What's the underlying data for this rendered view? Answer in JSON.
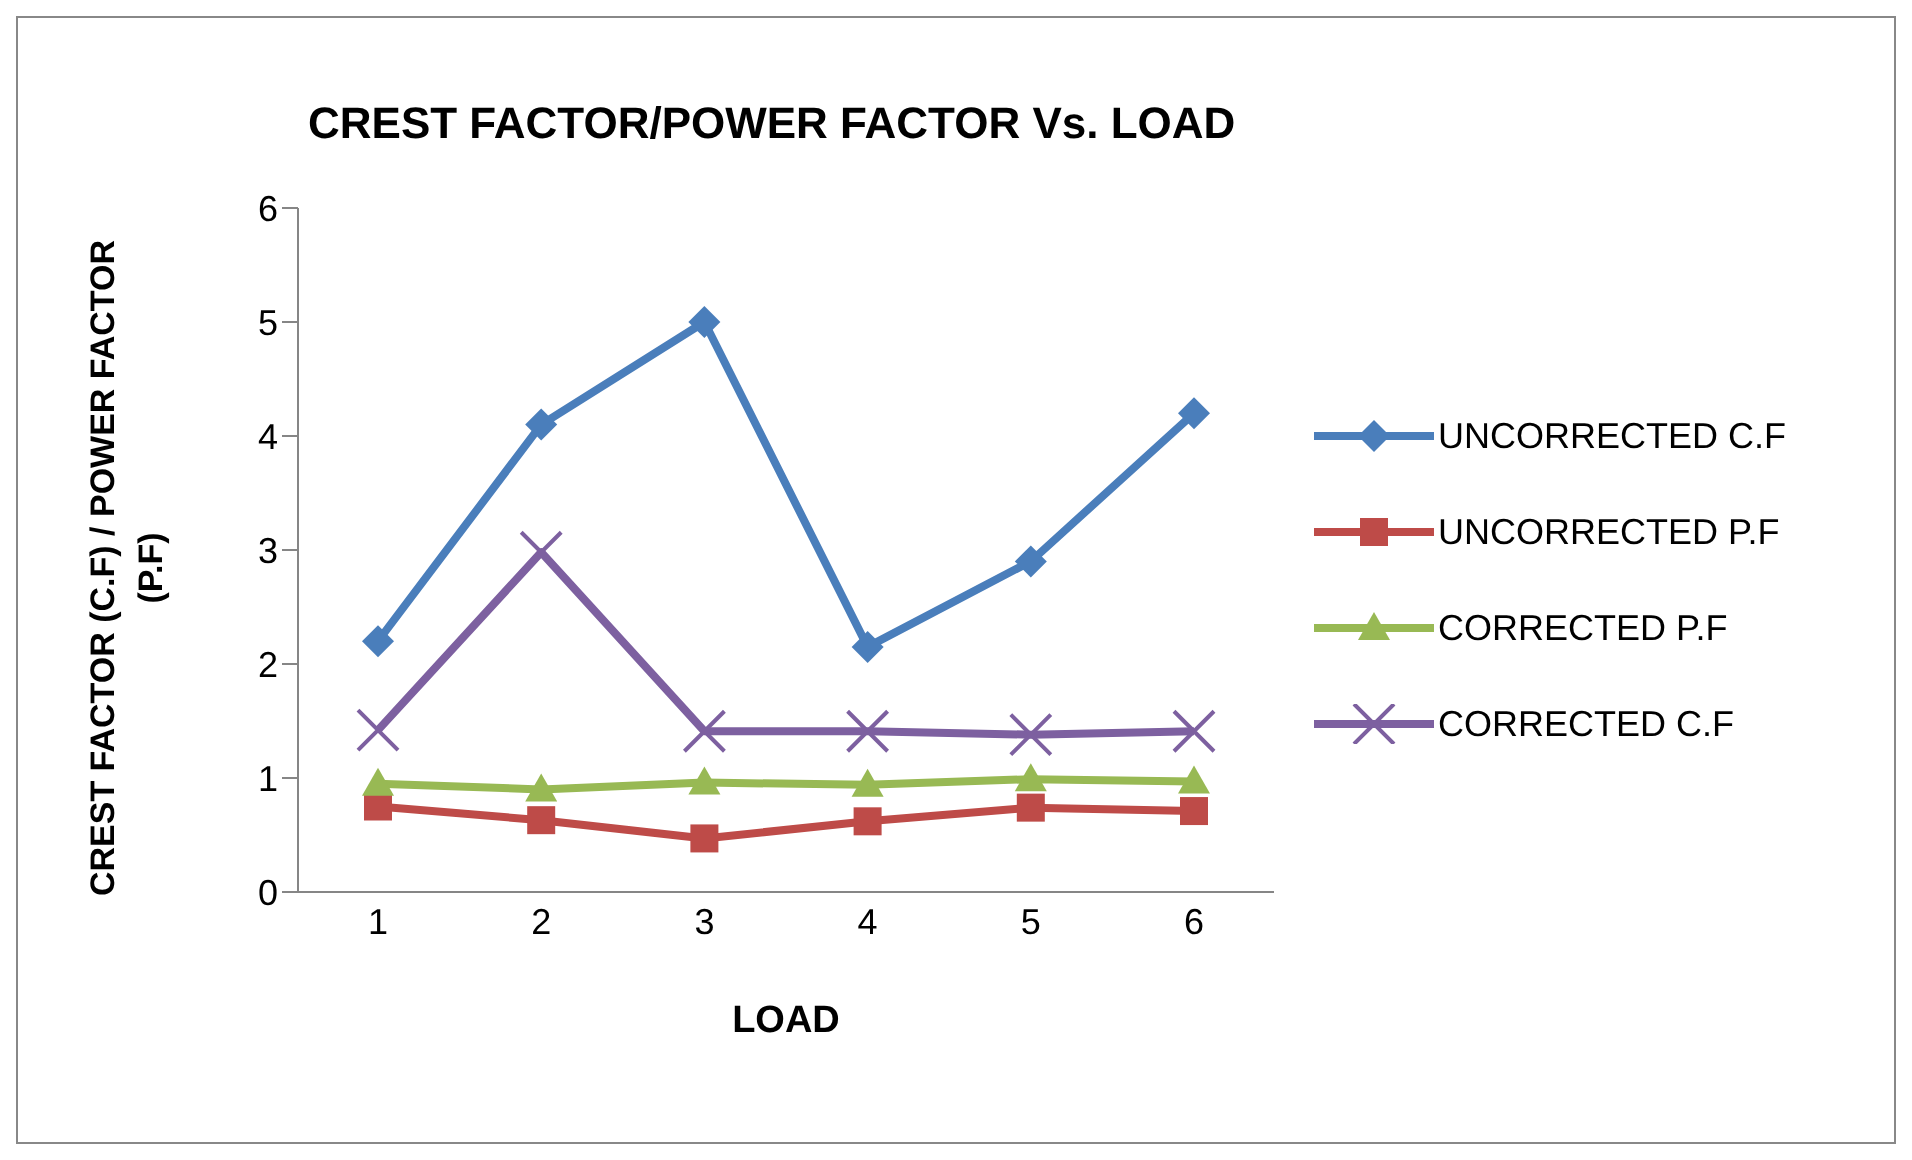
{
  "chart_data": {
    "type": "line",
    "title": "CREST FACTOR/POWER FACTOR Vs. LOAD",
    "xlabel": "LOAD",
    "ylabel": "CREST FACTOR (C.F) / POWER FACTOR (P.F)",
    "categories": [
      "1",
      "2",
      "3",
      "4",
      "5",
      "6"
    ],
    "series": [
      {
        "name": "UNCORRECTED C.F",
        "color": "#4a7ebb",
        "marker": "diamond",
        "values": [
          2.2,
          4.1,
          5.0,
          2.15,
          2.9,
          4.2
        ]
      },
      {
        "name": "UNCORRECTED P.F",
        "color": "#be4b48",
        "marker": "square",
        "values": [
          0.75,
          0.63,
          0.47,
          0.62,
          0.74,
          0.71
        ]
      },
      {
        "name": "CORRECTED P.F",
        "color": "#98b954",
        "marker": "triangle",
        "values": [
          0.95,
          0.9,
          0.96,
          0.94,
          0.99,
          0.97
        ]
      },
      {
        "name": "CORRECTED C.F",
        "color": "#7d60a0",
        "marker": "cross",
        "values": [
          1.42,
          2.98,
          1.41,
          1.41,
          1.38,
          1.41
        ]
      }
    ],
    "ylim": [
      0,
      6
    ],
    "yticks": [
      0,
      1,
      2,
      3,
      4,
      5,
      6
    ],
    "grid": false,
    "legend": "right",
    "line_style": "solid"
  }
}
